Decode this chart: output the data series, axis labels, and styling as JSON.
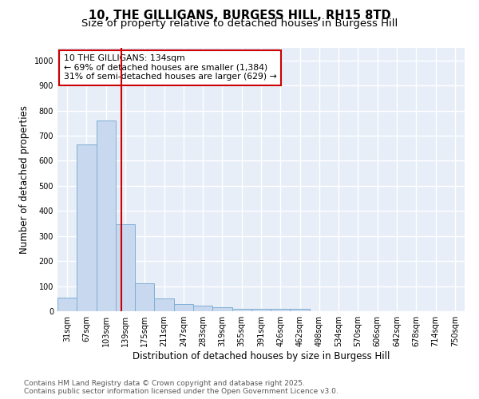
{
  "title": "10, THE GILLIGANS, BURGESS HILL, RH15 8TD",
  "subtitle": "Size of property relative to detached houses in Burgess Hill",
  "xlabel": "Distribution of detached houses by size in Burgess Hill",
  "ylabel": "Number of detached properties",
  "bar_labels": [
    "31sqm",
    "67sqm",
    "103sqm",
    "139sqm",
    "175sqm",
    "211sqm",
    "247sqm",
    "283sqm",
    "319sqm",
    "355sqm",
    "391sqm",
    "426sqm",
    "462sqm",
    "498sqm",
    "534sqm",
    "570sqm",
    "606sqm",
    "642sqm",
    "678sqm",
    "714sqm",
    "750sqm"
  ],
  "bar_values": [
    55,
    665,
    760,
    348,
    110,
    50,
    28,
    22,
    15,
    10,
    8,
    8,
    8,
    0,
    0,
    0,
    0,
    0,
    0,
    0,
    0
  ],
  "bar_color": "#c8d8ef",
  "bar_edge_color": "#7fafd4",
  "vline_x": 2.78,
  "vline_color": "#cc0000",
  "annotation_line1": "10 THE GILLIGANS: 134sqm",
  "annotation_line2": "← 69% of detached houses are smaller (1,384)",
  "annotation_line3": "31% of semi-detached houses are larger (629) →",
  "annotation_box_facecolor": "#ffffff",
  "annotation_box_edgecolor": "#cc0000",
  "ylim": [
    0,
    1050
  ],
  "yticks": [
    0,
    100,
    200,
    300,
    400,
    500,
    600,
    700,
    800,
    900,
    1000
  ],
  "footnote": "Contains HM Land Registry data © Crown copyright and database right 2025.\nContains public sector information licensed under the Open Government Licence v3.0.",
  "fig_facecolor": "#ffffff",
  "axes_facecolor": "#e8eef8",
  "grid_color": "#ffffff",
  "title_fontsize": 10.5,
  "subtitle_fontsize": 9.5,
  "tick_fontsize": 7,
  "ylabel_fontsize": 8.5,
  "xlabel_fontsize": 8.5,
  "annotation_fontsize": 7.8,
  "footnote_fontsize": 6.5
}
